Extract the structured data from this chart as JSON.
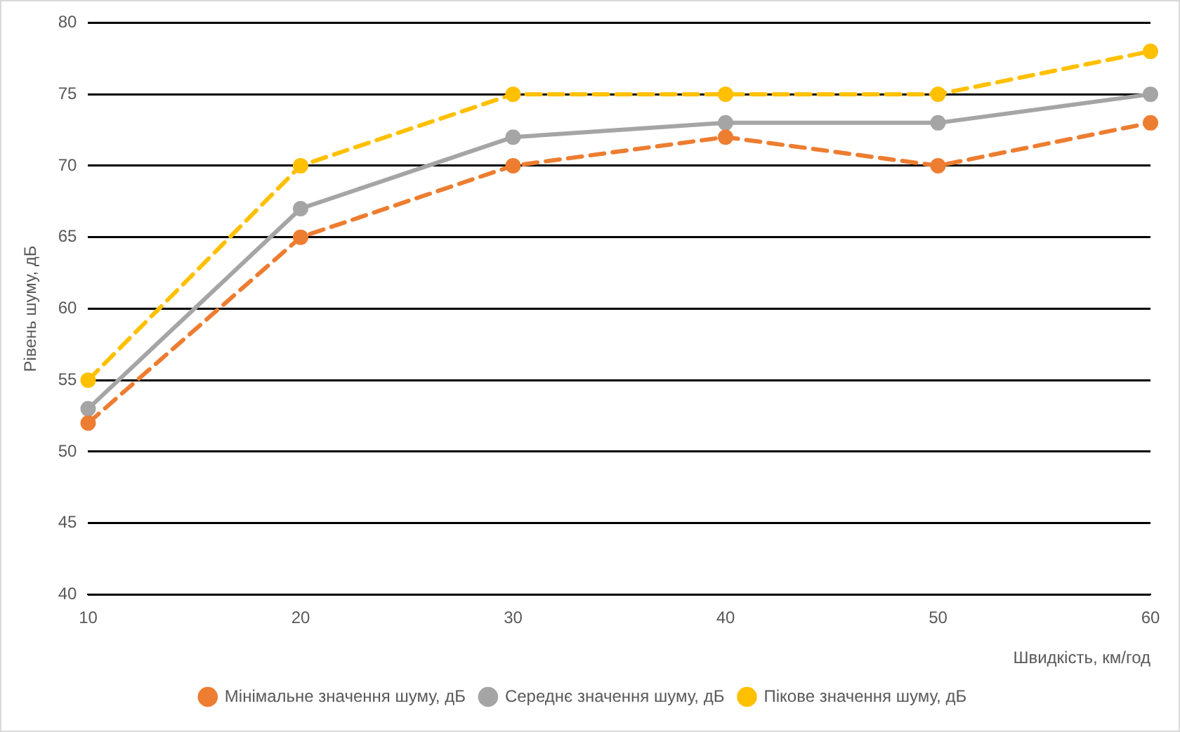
{
  "chart_data": {
    "type": "line",
    "xlabel": "Швидкість, км/год",
    "ylabel": "Рівень шуму, дБ",
    "categories": [
      "10",
      "20",
      "30",
      "40",
      "50",
      "60"
    ],
    "series": [
      {
        "name": "Мінімальне значення шуму, дБ",
        "color": "#ed7d31",
        "line_style": "dashed",
        "values": [
          52,
          65,
          70,
          72,
          70,
          73
        ]
      },
      {
        "name": "Середнє значення шуму, дБ",
        "color": "#a5a5a5",
        "line_style": "solid",
        "values": [
          53,
          67,
          72,
          73,
          73,
          75
        ]
      },
      {
        "name": "Пікове значення шуму, дБ",
        "color": "#ffc000",
        "line_style": "dashed",
        "values": [
          55,
          70,
          75,
          75,
          75,
          78
        ]
      }
    ],
    "ylim": [
      40,
      80
    ],
    "yticks": [
      40,
      45,
      50,
      55,
      60,
      65,
      70,
      75,
      80
    ],
    "grid": "y",
    "legend": "bottom",
    "marker": "circle"
  }
}
